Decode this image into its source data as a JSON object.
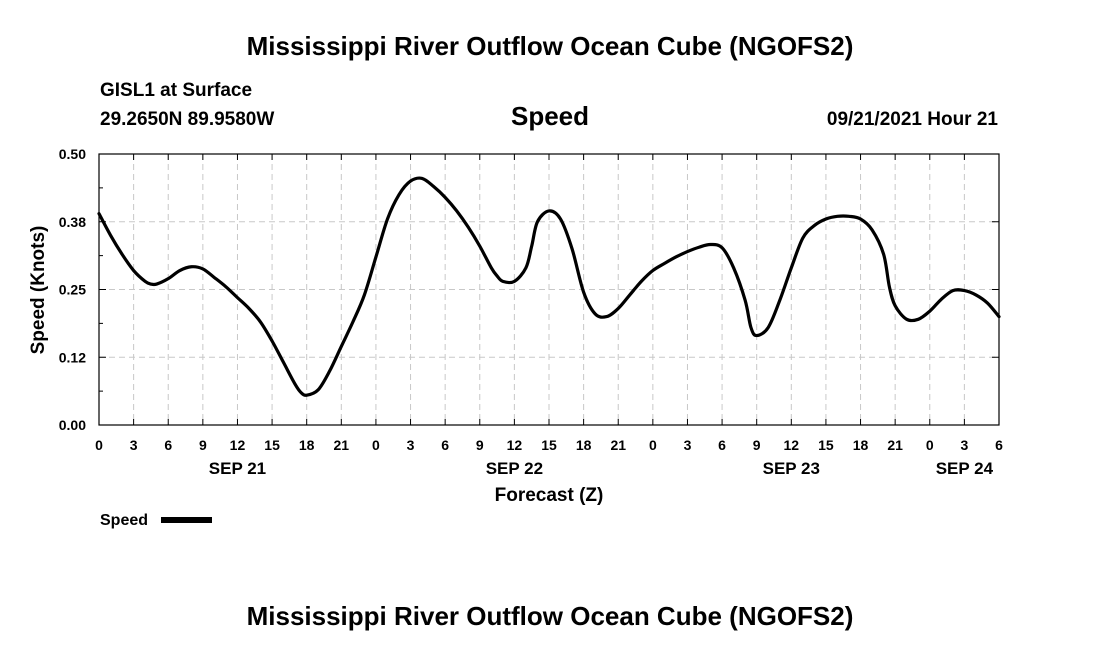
{
  "header": {
    "title": "Mississippi River Outflow Ocean Cube (NGOFS2)",
    "station": "GISL1 at Surface",
    "coords": "29.2650N  89.9580W",
    "run": "09/21/2021 Hour 21"
  },
  "footer": {
    "title": "Mississippi River Outflow Ocean Cube (NGOFS2)"
  },
  "chart_data": {
    "type": "line",
    "title": "Speed",
    "xlabel": "Forecast (Z)",
    "ylabel": "Speed (Knots)",
    "xunit": "hours since SEP 21 00Z",
    "xlim": [
      0,
      78
    ],
    "ylim": [
      0,
      0.5
    ],
    "yticks": [
      {
        "value": 0.0,
        "label": "0.00"
      },
      {
        "value": 0.125,
        "label": "0.12"
      },
      {
        "value": 0.25,
        "label": "0.25"
      },
      {
        "value": 0.375,
        "label": "0.38"
      },
      {
        "value": 0.5,
        "label": "0.50"
      }
    ],
    "xticks": [
      {
        "value": 0,
        "label": "0"
      },
      {
        "value": 3,
        "label": "3"
      },
      {
        "value": 6,
        "label": "6"
      },
      {
        "value": 9,
        "label": "9"
      },
      {
        "value": 12,
        "label": "12"
      },
      {
        "value": 15,
        "label": "15"
      },
      {
        "value": 18,
        "label": "18"
      },
      {
        "value": 21,
        "label": "21"
      },
      {
        "value": 24,
        "label": "0"
      },
      {
        "value": 27,
        "label": "3"
      },
      {
        "value": 30,
        "label": "6"
      },
      {
        "value": 33,
        "label": "9"
      },
      {
        "value": 36,
        "label": "12"
      },
      {
        "value": 39,
        "label": "15"
      },
      {
        "value": 42,
        "label": "18"
      },
      {
        "value": 45,
        "label": "21"
      },
      {
        "value": 48,
        "label": "0"
      },
      {
        "value": 51,
        "label": "3"
      },
      {
        "value": 54,
        "label": "6"
      },
      {
        "value": 57,
        "label": "9"
      },
      {
        "value": 60,
        "label": "12"
      },
      {
        "value": 63,
        "label": "15"
      },
      {
        "value": 66,
        "label": "18"
      },
      {
        "value": 69,
        "label": "21"
      },
      {
        "value": 72,
        "label": "0"
      },
      {
        "value": 75,
        "label": "3"
      },
      {
        "value": 78,
        "label": "6"
      }
    ],
    "date_labels": [
      {
        "value": 12,
        "label": "SEP 21"
      },
      {
        "value": 36,
        "label": "SEP 22"
      },
      {
        "value": 60,
        "label": "SEP 23"
      },
      {
        "value": 75,
        "label": "SEP 24"
      }
    ],
    "grid": true,
    "legend": "bottom-left",
    "series": [
      {
        "name": "Speed",
        "color": "#000000",
        "x": [
          0,
          1,
          2,
          3,
          4,
          4.5,
          5,
          6,
          7,
          8,
          9,
          10,
          11,
          12,
          13,
          14,
          15,
          16,
          17,
          17.5,
          18,
          19,
          20,
          21,
          22,
          23,
          24,
          25,
          26,
          27,
          28,
          29,
          30,
          31,
          32,
          33,
          34,
          34.5,
          35,
          36,
          37,
          37.5,
          38,
          39,
          40,
          41,
          42,
          43,
          44,
          45,
          46,
          47,
          48,
          49,
          50,
          51,
          52,
          53,
          54,
          55,
          56,
          56.5,
          57,
          58,
          59,
          60,
          61,
          62,
          63,
          64,
          65,
          66,
          67,
          68,
          68.5,
          69,
          70,
          71,
          72,
          73,
          74,
          75,
          76,
          77,
          78
        ],
        "y": [
          0.39,
          0.35,
          0.315,
          0.285,
          0.265,
          0.26,
          0.26,
          0.27,
          0.285,
          0.292,
          0.288,
          0.272,
          0.255,
          0.235,
          0.215,
          0.19,
          0.155,
          0.115,
          0.075,
          0.06,
          0.055,
          0.065,
          0.1,
          0.145,
          0.19,
          0.24,
          0.31,
          0.38,
          0.425,
          0.45,
          0.455,
          0.44,
          0.42,
          0.395,
          0.365,
          0.33,
          0.29,
          0.275,
          0.265,
          0.265,
          0.29,
          0.33,
          0.375,
          0.395,
          0.38,
          0.325,
          0.245,
          0.205,
          0.2,
          0.215,
          0.24,
          0.265,
          0.285,
          0.298,
          0.31,
          0.32,
          0.328,
          0.333,
          0.327,
          0.29,
          0.23,
          0.18,
          0.165,
          0.18,
          0.23,
          0.29,
          0.345,
          0.368,
          0.38,
          0.385,
          0.385,
          0.38,
          0.36,
          0.315,
          0.255,
          0.22,
          0.195,
          0.195,
          0.21,
          0.232,
          0.248,
          0.248,
          0.24,
          0.225,
          0.2
        ]
      }
    ]
  }
}
